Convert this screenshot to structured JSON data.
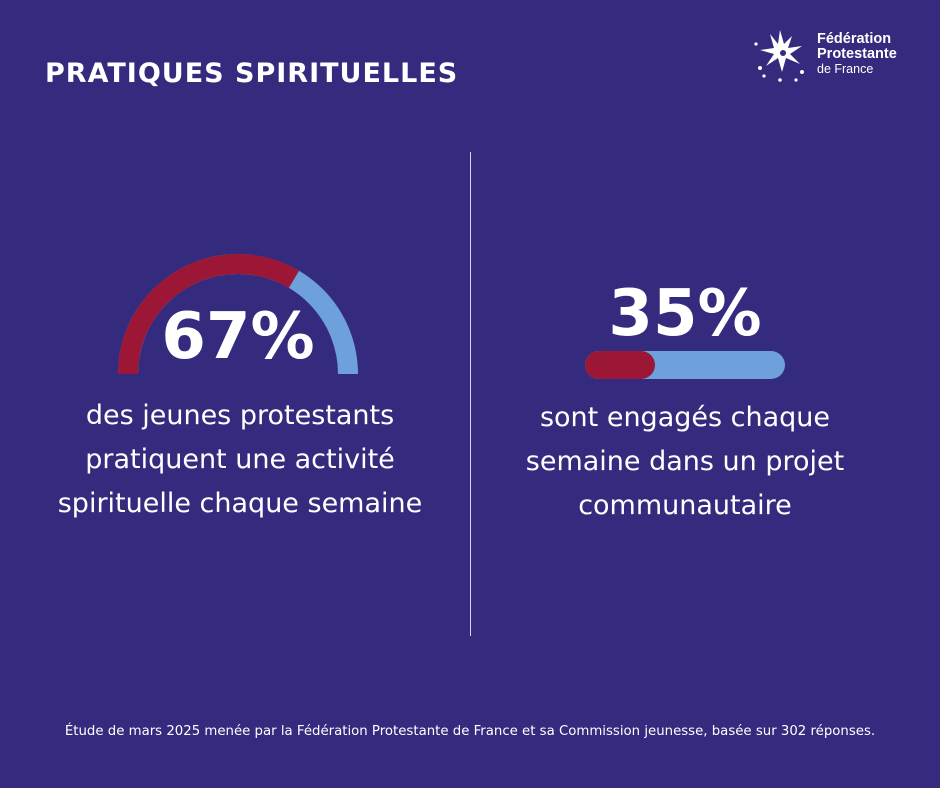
{
  "header": {
    "title": "PRATIQUES SPIRITUELLES"
  },
  "logo": {
    "line1": "Fédération",
    "line2": "Protestante",
    "line3": "de France",
    "icon": "cross-star-icon"
  },
  "chart_data": [
    {
      "type": "gauge",
      "value": 67,
      "max": 100,
      "value_label": "67%",
      "caption": [
        "des jeunes protestants",
        "pratiquent une activité",
        "spirituelle chaque semaine"
      ],
      "colors": {
        "fill": "#9b1735",
        "track": "#6ea0dc"
      }
    },
    {
      "type": "progress-bar",
      "value": 35,
      "max": 100,
      "value_label": "35%",
      "caption": [
        "sont engagés chaque",
        "semaine dans un projet",
        "communautaire"
      ],
      "colors": {
        "fill": "#9b1735",
        "track": "#6ea0dc"
      }
    }
  ],
  "footer": {
    "note": "Étude de mars 2025 menée par la Fédération Protestante de France et sa Commission jeunesse, basée sur 302 réponses."
  },
  "colors": {
    "background": "#342b7e",
    "text": "#ffffff"
  }
}
